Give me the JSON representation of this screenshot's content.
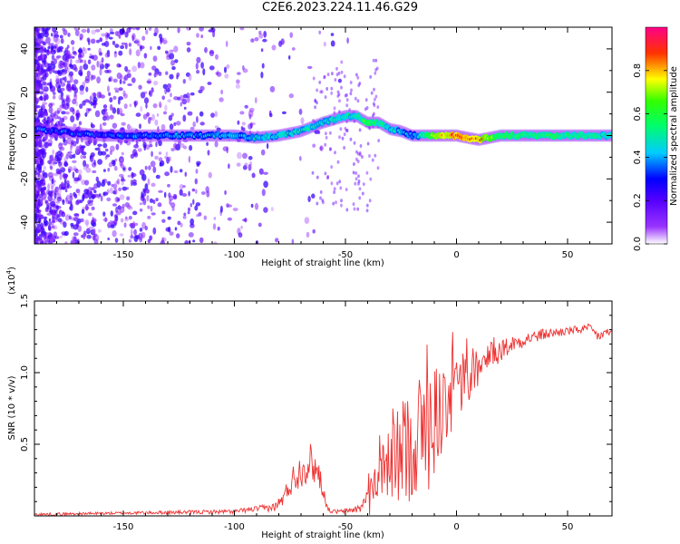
{
  "page": {
    "title": "C2E6.2023.224.11.46.G29"
  },
  "colors": {
    "snr_line": "#ee3333",
    "axes": "#000000",
    "colormap": [
      "#ffffff",
      "#8800ff",
      "#0000ff",
      "#00ffff",
      "#00ff00",
      "#ffff00",
      "#ff0000",
      "#ff0088"
    ]
  },
  "chart_data": [
    {
      "type": "heatmap",
      "title": "",
      "xlabel": "Height of straight line (km)",
      "ylabel": "Frequency (Hz)",
      "xlim": [
        -190,
        70
      ],
      "ylim": [
        -50,
        50
      ],
      "xticks": [
        -150,
        -100,
        -50,
        0,
        50
      ],
      "yticks": [
        -40,
        -20,
        0,
        20,
        40
      ],
      "colorbar": {
        "label": "Normalized spectral amplitude",
        "range": [
          0,
          1
        ],
        "ticks": [
          0.0,
          0.2,
          0.4,
          0.6,
          0.8
        ]
      },
      "ridge": {
        "x": [
          -190,
          -160,
          -140,
          -120,
          -100,
          -90,
          -80,
          -70,
          -60,
          -50,
          -45,
          -40,
          -35,
          -30,
          -25,
          -20,
          -15,
          -10,
          0,
          10,
          20,
          40,
          60,
          70
        ],
        "y": [
          3,
          0,
          0,
          0,
          0,
          -1,
          0,
          2,
          6,
          9,
          9,
          6,
          6,
          3,
          2,
          0,
          0,
          0,
          0,
          -2,
          0,
          0,
          0,
          0
        ],
        "amplitude": [
          0.35,
          0.35,
          0.4,
          0.4,
          0.45,
          0.45,
          0.5,
          0.5,
          0.5,
          0.55,
          0.5,
          0.65,
          0.55,
          0.5,
          0.45,
          0.4,
          0.55,
          0.75,
          0.9,
          0.85,
          0.6,
          0.6,
          0.55,
          0.55
        ]
      }
    },
    {
      "type": "line",
      "title": "",
      "xlabel": "Height of straight line (km)",
      "ylabel": "SNR (10 * v/v)",
      "yscale_note": "(x10",
      "yscale_exp": "4",
      "xlim": [
        -190,
        70
      ],
      "ylim": [
        0,
        1.5
      ],
      "xticks": [
        -150,
        -100,
        -50,
        0,
        50
      ],
      "yticks": [
        0.5,
        1.0,
        1.5
      ],
      "ytick_labels": [
        "0.5",
        "1.0",
        "1.5"
      ],
      "envelope": {
        "x": [
          -190,
          -150,
          -100,
          -90,
          -82,
          -78,
          -74,
          -70,
          -66,
          -62,
          -58,
          -56,
          -52,
          -48,
          -44,
          -38,
          -32,
          -25,
          -18,
          -12,
          -8,
          -4,
          0,
          5,
          10,
          15,
          20,
          25,
          30,
          40,
          50,
          60,
          64,
          67,
          70
        ],
        "y": [
          0.01,
          0.02,
          0.03,
          0.05,
          0.06,
          0.12,
          0.25,
          0.32,
          0.38,
          0.3,
          0.05,
          0.03,
          0.03,
          0.04,
          0.05,
          0.15,
          0.3,
          0.45,
          0.55,
          0.62,
          0.72,
          0.82,
          0.9,
          0.96,
          1.03,
          1.1,
          1.16,
          1.2,
          1.23,
          1.27,
          1.29,
          1.31,
          1.25,
          1.28,
          1.28
        ],
        "noise": [
          0.01,
          0.01,
          0.015,
          0.02,
          0.03,
          0.05,
          0.1,
          0.12,
          0.14,
          0.1,
          0.015,
          0.015,
          0.015,
          0.02,
          0.03,
          0.15,
          0.25,
          0.35,
          0.45,
          0.45,
          0.35,
          0.3,
          0.25,
          0.2,
          0.15,
          0.1,
          0.08,
          0.06,
          0.05,
          0.04,
          0.03,
          0.03,
          0.04,
          0.03,
          0.03
        ]
      }
    }
  ]
}
